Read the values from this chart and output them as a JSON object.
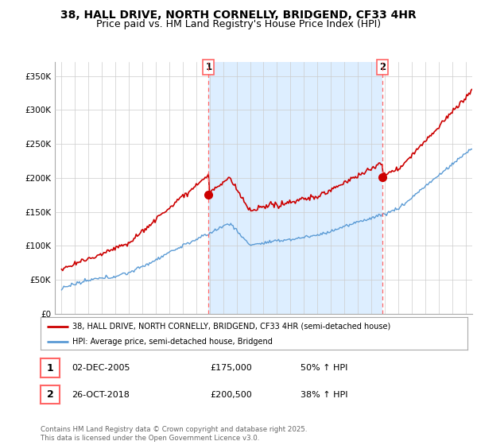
{
  "title": "38, HALL DRIVE, NORTH CORNELLY, BRIDGEND, CF33 4HR",
  "subtitle": "Price paid vs. HM Land Registry's House Price Index (HPI)",
  "legend_line1": "38, HALL DRIVE, NORTH CORNELLY, BRIDGEND, CF33 4HR (semi-detached house)",
  "legend_line2": "HPI: Average price, semi-detached house, Bridgend",
  "annotation1_label": "1",
  "annotation1_date": "02-DEC-2005",
  "annotation1_price": "£175,000",
  "annotation1_hpi": "50% ↑ HPI",
  "annotation2_label": "2",
  "annotation2_date": "26-OCT-2018",
  "annotation2_price": "£200,500",
  "annotation2_hpi": "38% ↑ HPI",
  "copyright": "Contains HM Land Registry data © Crown copyright and database right 2025.\nThis data is licensed under the Open Government Licence v3.0.",
  "vline1_year": 2005.92,
  "vline2_year": 2018.82,
  "marker1_price": 175000,
  "marker2_price": 200500,
  "red_line_color": "#cc0000",
  "blue_line_color": "#5b9bd5",
  "vline_color": "#ff6666",
  "shading_color": "#ddeeff",
  "background_color": "#ffffff",
  "grid_color": "#cccccc",
  "ylim": [
    0,
    370000
  ],
  "xlim_start": 1994.5,
  "xlim_end": 2025.5,
  "title_fontsize": 10,
  "subtitle_fontsize": 9
}
